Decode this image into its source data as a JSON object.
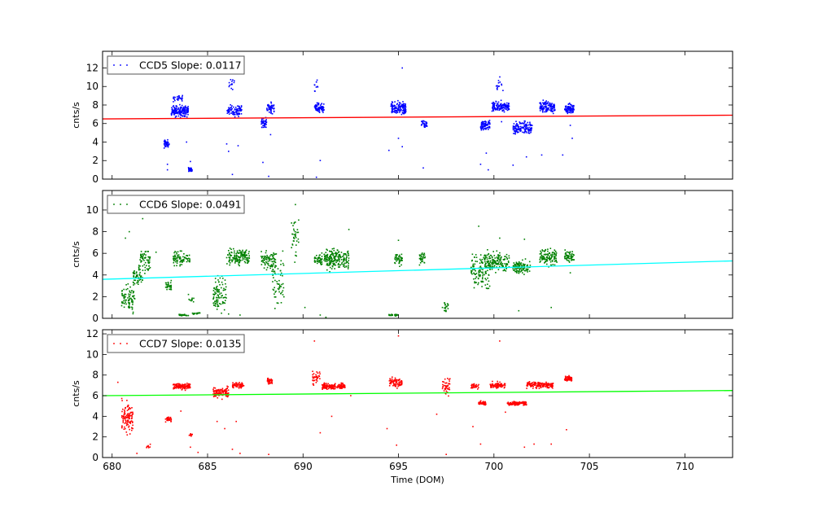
{
  "chart_data": {
    "type": "scatter",
    "xlabel": "Time (DOM)",
    "xlim": [
      679.5,
      712.5
    ],
    "xticks": [
      680,
      685,
      690,
      695,
      700,
      705,
      710
    ],
    "panels": [
      {
        "legend": "CCD5 Slope: 0.0117",
        "ylabel": "cnts/s",
        "ylim": [
          0,
          13.8
        ],
        "yticks": [
          0,
          2,
          4,
          6,
          8,
          10,
          12
        ],
        "point_color": "#0000ff",
        "fit_color": "#ff0000",
        "fit_line": [
          [
            679.5,
            6.5
          ],
          [
            712.5,
            6.9
          ]
        ],
        "clusters": [
          {
            "x": [
              682.7,
              683.0
            ],
            "y": [
              3.2,
              4.4
            ],
            "n": 50
          },
          {
            "x": [
              683.1,
              684.0
            ],
            "y": [
              6.5,
              8.2
            ],
            "n": 160
          },
          {
            "x": [
              683.2,
              683.7
            ],
            "y": [
              8.2,
              9.2
            ],
            "n": 25
          },
          {
            "x": [
              684.0,
              684.2
            ],
            "y": [
              0.7,
              1.4
            ],
            "n": 30
          },
          {
            "x": [
              686.0,
              686.8
            ],
            "y": [
              6.6,
              8.2
            ],
            "n": 90
          },
          {
            "x": [
              686.1,
              686.4
            ],
            "y": [
              9.5,
              11.0
            ],
            "n": 14
          },
          {
            "x": [
              687.8,
              688.1
            ],
            "y": [
              5.4,
              6.8
            ],
            "n": 45
          },
          {
            "x": [
              688.1,
              688.5
            ],
            "y": [
              6.8,
              8.5
            ],
            "n": 45
          },
          {
            "x": [
              690.6,
              691.1
            ],
            "y": [
              7.0,
              8.4
            ],
            "n": 70
          },
          {
            "x": [
              690.6,
              690.8
            ],
            "y": [
              9.0,
              11.0
            ],
            "n": 10
          },
          {
            "x": [
              694.6,
              695.4
            ],
            "y": [
              6.6,
              8.6
            ],
            "n": 130
          },
          {
            "x": [
              696.2,
              696.5
            ],
            "y": [
              5.2,
              6.5
            ],
            "n": 35
          },
          {
            "x": [
              699.3,
              699.8
            ],
            "y": [
              5.0,
              6.6
            ],
            "n": 80
          },
          {
            "x": [
              699.9,
              700.8
            ],
            "y": [
              7.0,
              8.6
            ],
            "n": 130
          },
          {
            "x": [
              700.1,
              700.5
            ],
            "y": [
              9.0,
              11.2
            ],
            "n": 14
          },
          {
            "x": [
              701.0,
              702.0
            ],
            "y": [
              4.6,
              6.5
            ],
            "n": 130
          },
          {
            "x": [
              702.4,
              703.2
            ],
            "y": [
              6.8,
              8.8
            ],
            "n": 120
          },
          {
            "x": [
              703.7,
              704.2
            ],
            "y": [
              6.8,
              8.4
            ],
            "n": 80
          }
        ],
        "outliers": [
          [
            682.9,
            1.0
          ],
          [
            682.9,
            1.6
          ],
          [
            683.9,
            4.0
          ],
          [
            684.1,
            1.9
          ],
          [
            686.1,
            3.0
          ],
          [
            686.6,
            3.6
          ],
          [
            686.3,
            0.5
          ],
          [
            686.0,
            3.8
          ],
          [
            687.9,
            1.8
          ],
          [
            688.2,
            0.3
          ],
          [
            688.3,
            4.8
          ],
          [
            690.7,
            0.2
          ],
          [
            690.9,
            2.0
          ],
          [
            694.5,
            3.1
          ],
          [
            695.0,
            4.4
          ],
          [
            695.2,
            3.5
          ],
          [
            696.3,
            1.2
          ],
          [
            695.2,
            12.0
          ],
          [
            699.3,
            1.6
          ],
          [
            699.6,
            2.8
          ],
          [
            699.7,
            1.0
          ],
          [
            701.0,
            1.5
          ],
          [
            701.7,
            2.4
          ],
          [
            702.5,
            2.6
          ],
          [
            703.6,
            2.6
          ],
          [
            704.1,
            4.4
          ],
          [
            704.0,
            5.8
          ],
          [
            700.4,
            6.2
          ]
        ]
      },
      {
        "legend": "CCD6 Slope: 0.0491",
        "ylabel": "cnts/s",
        "ylim": [
          0,
          11.8
        ],
        "yticks": [
          0,
          2,
          4,
          6,
          8,
          10
        ],
        "point_color": "#008000",
        "fit_color": "#00ffff",
        "fit_line": [
          [
            679.5,
            3.6
          ],
          [
            712.5,
            5.3
          ]
        ],
        "clusters": [
          {
            "x": [
              680.5,
              681.2
            ],
            "y": [
              0.2,
              3.5
            ],
            "n": 80
          },
          {
            "x": [
              681.1,
              681.6
            ],
            "y": [
              2.5,
              5.0
            ],
            "n": 45
          },
          {
            "x": [
              681.4,
              682.0
            ],
            "y": [
              3.5,
              7.0
            ],
            "n": 70
          },
          {
            "x": [
              682.8,
              683.1
            ],
            "y": [
              2.4,
              3.6
            ],
            "n": 30
          },
          {
            "x": [
              683.2,
              683.8
            ],
            "y": [
              4.6,
              6.4
            ],
            "n": 60
          },
          {
            "x": [
              683.5,
              684.0
            ],
            "y": [
              0.2,
              0.4
            ],
            "n": 30
          },
          {
            "x": [
              683.8,
              684.1
            ],
            "y": [
              4.8,
              6.2
            ],
            "n": 18
          },
          {
            "x": [
              684.0,
              684.3
            ],
            "y": [
              1.4,
              2.0
            ],
            "n": 10
          },
          {
            "x": [
              684.2,
              684.6
            ],
            "y": [
              0.3,
              0.6
            ],
            "n": 20
          },
          {
            "x": [
              685.3,
              686.0
            ],
            "y": [
              0.2,
              4.5
            ],
            "n": 90
          },
          {
            "x": [
              686.0,
              687.2
            ],
            "y": [
              4.6,
              6.8
            ],
            "n": 140
          },
          {
            "x": [
              687.8,
              688.6
            ],
            "y": [
              4.0,
              6.4
            ],
            "n": 80
          },
          {
            "x": [
              688.4,
              689.0
            ],
            "y": [
              0.2,
              6.8
            ],
            "n": 60
          },
          {
            "x": [
              689.4,
              689.8
            ],
            "y": [
              3.8,
              10.5
            ],
            "n": 35
          },
          {
            "x": [
              690.6,
              691.0
            ],
            "y": [
              4.6,
              6.2
            ],
            "n": 45
          },
          {
            "x": [
              691.1,
              692.4
            ],
            "y": [
              4.2,
              6.8
            ],
            "n": 190
          },
          {
            "x": [
              694.5,
              695.0
            ],
            "y": [
              0.2,
              0.4
            ],
            "n": 25
          },
          {
            "x": [
              694.8,
              695.2
            ],
            "y": [
              4.6,
              6.4
            ],
            "n": 40
          },
          {
            "x": [
              696.1,
              696.4
            ],
            "y": [
              4.6,
              6.4
            ],
            "n": 30
          },
          {
            "x": [
              697.4,
              697.6
            ],
            "y": [
              0.3,
              1.8
            ],
            "n": 18
          },
          {
            "x": [
              698.8,
              699.8
            ],
            "y": [
              1.8,
              6.8
            ],
            "n": 120
          },
          {
            "x": [
              699.5,
              700.8
            ],
            "y": [
              4.0,
              6.4
            ],
            "n": 150
          },
          {
            "x": [
              701.0,
              701.9
            ],
            "y": [
              3.8,
              5.6
            ],
            "n": 110
          },
          {
            "x": [
              702.4,
              703.3
            ],
            "y": [
              4.6,
              6.8
            ],
            "n": 110
          },
          {
            "x": [
              703.7,
              704.2
            ],
            "y": [
              5.0,
              6.4
            ],
            "n": 60
          }
        ],
        "outliers": [
          [
            681.6,
            9.2
          ],
          [
            680.9,
            8.0
          ],
          [
            680.7,
            7.4
          ],
          [
            682.3,
            6.1
          ],
          [
            684.0,
            2.2
          ],
          [
            686.1,
            0.4
          ],
          [
            686.7,
            0.3
          ],
          [
            689.6,
            10.5
          ],
          [
            689.4,
            8.8
          ],
          [
            690.1,
            1.0
          ],
          [
            690.9,
            0.3
          ],
          [
            691.2,
            0.1
          ],
          [
            692.4,
            8.2
          ],
          [
            691.4,
            4.3
          ],
          [
            699.2,
            8.5
          ],
          [
            697.3,
            1.0
          ],
          [
            701.6,
            7.3
          ],
          [
            703.0,
            1.0
          ],
          [
            701.3,
            0.7
          ],
          [
            704.0,
            4.2
          ],
          [
            700.3,
            7.4
          ],
          [
            695.0,
            7.2
          ]
        ]
      },
      {
        "legend": "CCD7 Slope: 0.0135",
        "ylabel": "cnts/s",
        "ylim": [
          0,
          12.4
        ],
        "yticks": [
          0,
          2,
          4,
          6,
          8,
          10,
          12
        ],
        "point_color": "#ff0000",
        "fit_color": "#00ff00",
        "fit_line": [
          [
            679.5,
            6.0
          ],
          [
            712.5,
            6.5
          ]
        ],
        "clusters": [
          {
            "x": [
              680.5,
              681.1
            ],
            "y": [
              1.8,
              6.0
            ],
            "n": 110
          },
          {
            "x": [
              681.8,
              682.0
            ],
            "y": [
              0.8,
              1.4
            ],
            "n": 8
          },
          {
            "x": [
              682.8,
              683.1
            ],
            "y": [
              3.4,
              4.0
            ],
            "n": 30
          },
          {
            "x": [
              683.2,
              684.1
            ],
            "y": [
              6.5,
              7.3
            ],
            "n": 120
          },
          {
            "x": [
              684.0,
              684.2
            ],
            "y": [
              2.0,
              2.4
            ],
            "n": 10
          },
          {
            "x": [
              685.3,
              686.1
            ],
            "y": [
              5.6,
              7.0
            ],
            "n": 110
          },
          {
            "x": [
              686.3,
              686.9
            ],
            "y": [
              6.6,
              7.4
            ],
            "n": 60
          },
          {
            "x": [
              688.1,
              688.4
            ],
            "y": [
              7.0,
              7.8
            ],
            "n": 35
          },
          {
            "x": [
              690.5,
              690.9
            ],
            "y": [
              6.6,
              9.0
            ],
            "n": 35
          },
          {
            "x": [
              691.0,
              692.2
            ],
            "y": [
              6.5,
              7.3
            ],
            "n": 150
          },
          {
            "x": [
              694.5,
              695.2
            ],
            "y": [
              6.6,
              8.0
            ],
            "n": 80
          },
          {
            "x": [
              697.3,
              697.7
            ],
            "y": [
              5.6,
              8.2
            ],
            "n": 45
          },
          {
            "x": [
              698.8,
              699.2
            ],
            "y": [
              6.4,
              7.4
            ],
            "n": 30
          },
          {
            "x": [
              699.2,
              699.6
            ],
            "y": [
              5.0,
              5.6
            ],
            "n": 40
          },
          {
            "x": [
              699.8,
              700.6
            ],
            "y": [
              6.6,
              7.4
            ],
            "n": 80
          },
          {
            "x": [
              700.7,
              701.7
            ],
            "y": [
              5.0,
              5.5
            ],
            "n": 110
          },
          {
            "x": [
              701.7,
              703.1
            ],
            "y": [
              6.6,
              7.5
            ],
            "n": 150
          },
          {
            "x": [
              703.7,
              704.1
            ],
            "y": [
              7.3,
              8.0
            ],
            "n": 60
          }
        ],
        "outliers": [
          [
            680.3,
            7.3
          ],
          [
            681.3,
            0.4
          ],
          [
            683.6,
            4.5
          ],
          [
            684.1,
            1.0
          ],
          [
            684.5,
            0.5
          ],
          [
            685.5,
            3.5
          ],
          [
            685.9,
            2.8
          ],
          [
            686.3,
            0.8
          ],
          [
            686.7,
            0.4
          ],
          [
            686.5,
            3.5
          ],
          [
            688.2,
            0.3
          ],
          [
            690.6,
            11.3
          ],
          [
            690.9,
            2.4
          ],
          [
            691.5,
            4.0
          ],
          [
            694.4,
            2.8
          ],
          [
            694.9,
            1.2
          ],
          [
            695.0,
            11.8
          ],
          [
            697.5,
            0.3
          ],
          [
            698.9,
            3.0
          ],
          [
            699.3,
            1.3
          ],
          [
            700.3,
            11.3
          ],
          [
            700.6,
            4.4
          ],
          [
            701.6,
            1.0
          ],
          [
            702.1,
            1.3
          ],
          [
            703.0,
            1.3
          ],
          [
            703.8,
            2.7
          ],
          [
            697.0,
            4.2
          ],
          [
            692.5,
            6.0
          ]
        ]
      }
    ]
  }
}
